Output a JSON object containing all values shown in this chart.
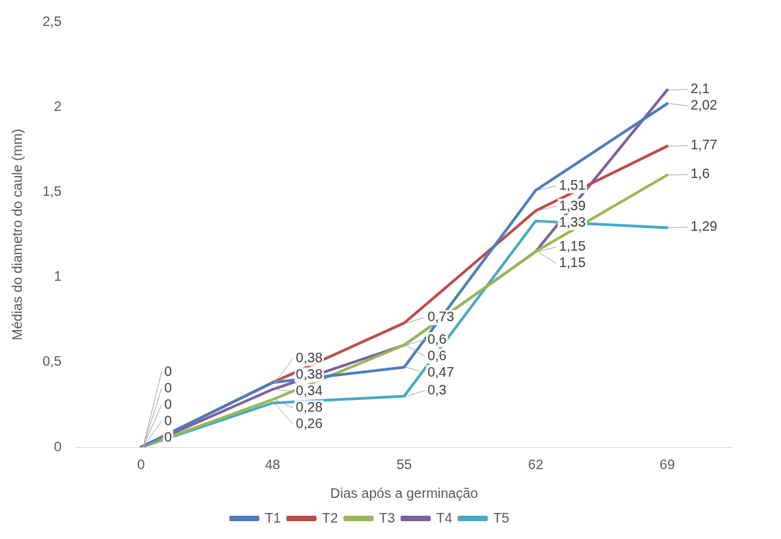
{
  "chart_data": {
    "type": "line",
    "xlabel": "Dias após a germinação",
    "ylabel": "Médias do diametro do caule (mm)",
    "categories": [
      "0",
      "48",
      "55",
      "62",
      "69"
    ],
    "series": [
      {
        "name": "T1",
        "color": "#4a7ebb",
        "values": [
          0,
          0.38,
          0.47,
          1.51,
          2.02
        ],
        "value_labels": [
          "0",
          "0,38",
          "0,47",
          "1,51",
          "2,02"
        ]
      },
      {
        "name": "T2",
        "color": "#be4b48",
        "values": [
          0,
          0.38,
          0.73,
          1.39,
          1.77
        ],
        "value_labels": [
          "0",
          "0,38",
          "0,73",
          "1,39",
          "1,77"
        ]
      },
      {
        "name": "T3",
        "color": "#98b954",
        "values": [
          0,
          0.28,
          0.6,
          1.15,
          1.6
        ],
        "value_labels": [
          "0",
          "0,28",
          "0,6",
          "1,15",
          "1,6"
        ]
      },
      {
        "name": "T4",
        "color": "#7d60a0",
        "values": [
          0,
          0.34,
          0.6,
          1.15,
          2.1
        ],
        "value_labels": [
          "0",
          "0,34",
          "0,6",
          "1,15",
          "2,1"
        ]
      },
      {
        "name": "T5",
        "color": "#46aac5",
        "values": [
          0,
          0.26,
          0.3,
          1.33,
          1.29
        ],
        "value_labels": [
          "0",
          "0,26",
          "0,3",
          "1,33",
          "1,29"
        ]
      }
    ],
    "ylim": [
      0,
      2.5
    ],
    "yticks": [
      {
        "value": 0,
        "label": "0"
      },
      {
        "value": 0.5,
        "label": "0,5"
      },
      {
        "value": 1,
        "label": "1"
      },
      {
        "value": 1.5,
        "label": "1,5"
      },
      {
        "value": 2,
        "label": "2"
      },
      {
        "value": 2.5,
        "label": "2,5"
      }
    ],
    "grid": false,
    "legend": "bottom",
    "marker": "none",
    "line_style": "solid"
  }
}
